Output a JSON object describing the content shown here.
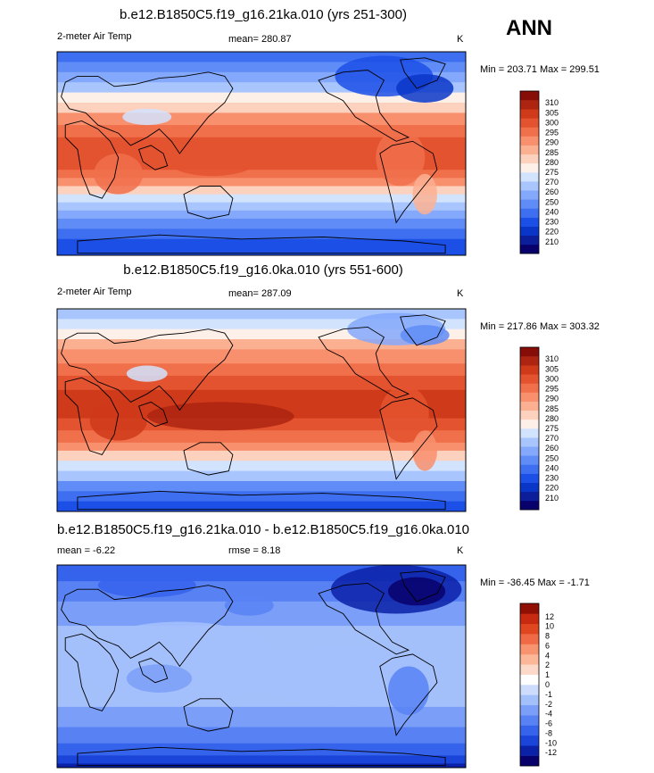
{
  "season_label": "ANN",
  "colors": {
    "temp_scale": [
      "#08006b",
      "#0c1e9a",
      "#0a36c8",
      "#1c4fe6",
      "#3d6ff0",
      "#5f8cf6",
      "#84a8fb",
      "#a9c5fd",
      "#d2e3fe",
      "#fdf0e8",
      "#fcd2bf",
      "#fbb092",
      "#f88f6d",
      "#f1704c",
      "#e4532f",
      "#cf3a1a",
      "#ad2510",
      "#870d08"
    ],
    "diff_scale": [
      "#08006b",
      "#0a21a8",
      "#1a45d8",
      "#3663ec",
      "#5882f4",
      "#7b9ff8",
      "#a4c0fb",
      "#cddcfd",
      "#ffffff",
      "#fdd9c9",
      "#fbb797",
      "#f8936f",
      "#f06b45",
      "#e0461f",
      "#c72a10",
      "#8f0f05"
    ]
  },
  "chart_data": [
    {
      "type": "heatmap",
      "title": "b.e12.B1850C5.f19_g16.21ka.010 (yrs 251-300)",
      "left_label": "2-meter Air Temp",
      "center_label": "mean= 280.87",
      "right_label": "K",
      "minmax": "Min = 203.71 Max = 299.51",
      "colorbar_levels": [
        "210",
        "220",
        "230",
        "240",
        "250",
        "260",
        "270",
        "275",
        "280",
        "285",
        "290",
        "295",
        "300",
        "305",
        "310"
      ]
    },
    {
      "type": "heatmap",
      "title": "b.e12.B1850C5.f19_g16.0ka.010 (yrs 551-600)",
      "left_label": "2-meter Air Temp",
      "center_label": "mean= 287.09",
      "right_label": "K",
      "minmax": "Min = 217.86 Max = 303.32",
      "colorbar_levels": [
        "210",
        "220",
        "230",
        "240",
        "250",
        "260",
        "270",
        "275",
        "280",
        "285",
        "290",
        "295",
        "300",
        "305",
        "310"
      ]
    },
    {
      "type": "heatmap",
      "title": "b.e12.B1850C5.f19_g16.21ka.010 - b.e12.B1850C5.f19_g16.0ka.010",
      "left_label": "mean =  -6.22",
      "center_label": "rmse =   8.18",
      "right_label": "K",
      "minmax": "Min = -36.45 Max =  -1.71",
      "colorbar_levels": [
        "-12",
        "-10",
        "-8",
        "-6",
        "-4",
        "-2",
        "-1",
        "0",
        "1",
        "2",
        "4",
        "6",
        "8",
        "10",
        "12"
      ]
    }
  ]
}
